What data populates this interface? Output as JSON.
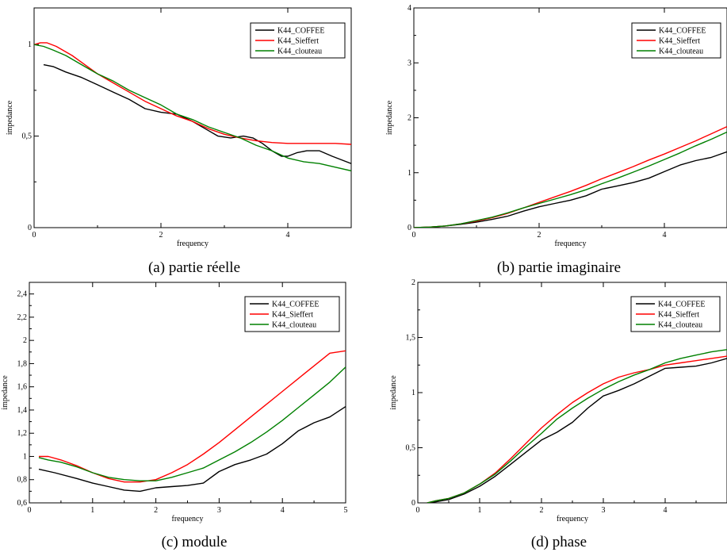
{
  "chart_data": [
    {
      "type": "line",
      "caption": "(a) partie réelle",
      "xlabel": "frequency",
      "ylabel": "impedance",
      "xlim": [
        0,
        5
      ],
      "ylim": [
        0,
        1.2
      ],
      "xticks": [
        0,
        2,
        4
      ],
      "xtick_labels": [
        "0",
        "2",
        "4"
      ],
      "yticks": [
        0,
        0.5,
        1
      ],
      "ytick_labels": [
        "0",
        "0,5",
        "1"
      ],
      "legend_position": "top-right",
      "grid": false,
      "series": [
        {
          "name": "K44_COFFEE",
          "color": "#000000",
          "x": [
            0.15,
            0.3,
            0.5,
            0.75,
            1.0,
            1.25,
            1.5,
            1.75,
            2.0,
            2.25,
            2.5,
            2.75,
            2.9,
            3.1,
            3.3,
            3.45,
            3.6,
            3.75,
            3.9,
            4.0,
            4.15,
            4.3,
            4.5,
            4.7,
            4.85,
            5.0
          ],
          "y": [
            0.89,
            0.88,
            0.85,
            0.82,
            0.78,
            0.74,
            0.7,
            0.65,
            0.63,
            0.62,
            0.58,
            0.53,
            0.5,
            0.49,
            0.5,
            0.49,
            0.46,
            0.42,
            0.39,
            0.39,
            0.41,
            0.42,
            0.42,
            0.39,
            0.37,
            0.35
          ]
        },
        {
          "name": "K44_Sieffert",
          "color": "#ff0000",
          "x": [
            0.0,
            0.1,
            0.2,
            0.35,
            0.6,
            0.8,
            1.0,
            1.25,
            1.5,
            1.75,
            2.0,
            2.25,
            2.5,
            2.75,
            3.0,
            3.25,
            3.5,
            3.75,
            4.0,
            4.25,
            4.5,
            4.75,
            5.0
          ],
          "y": [
            1.0,
            1.01,
            1.01,
            0.99,
            0.94,
            0.89,
            0.84,
            0.79,
            0.74,
            0.69,
            0.65,
            0.61,
            0.58,
            0.54,
            0.51,
            0.49,
            0.475,
            0.465,
            0.46,
            0.46,
            0.46,
            0.46,
            0.455
          ]
        },
        {
          "name": "K44_clouteau",
          "color": "#008000",
          "x": [
            0.0,
            0.15,
            0.3,
            0.5,
            0.75,
            1.0,
            1.25,
            1.5,
            1.75,
            2.0,
            2.25,
            2.5,
            2.75,
            3.0,
            3.25,
            3.5,
            3.75,
            4.0,
            4.25,
            4.5,
            4.75,
            5.0
          ],
          "y": [
            1.0,
            0.99,
            0.97,
            0.94,
            0.89,
            0.84,
            0.8,
            0.75,
            0.71,
            0.67,
            0.62,
            0.59,
            0.55,
            0.52,
            0.49,
            0.45,
            0.42,
            0.38,
            0.36,
            0.35,
            0.33,
            0.31
          ]
        }
      ]
    },
    {
      "type": "line",
      "caption": "(b) partie imaginaire",
      "xlabel": "frequency",
      "ylabel": "impedance",
      "xlim": [
        0,
        5
      ],
      "ylim": [
        0,
        4
      ],
      "xticks": [
        0,
        2,
        4
      ],
      "xtick_labels": [
        "0",
        "2",
        "4"
      ],
      "yticks": [
        0,
        1,
        2,
        3,
        4
      ],
      "ytick_labels": [
        "0",
        "1",
        "2",
        "3",
        "4"
      ],
      "legend_position": "top-right",
      "grid": false,
      "series": [
        {
          "name": "K44_COFFEE",
          "color": "#000000",
          "x": [
            0.0,
            0.25,
            0.5,
            0.75,
            1.0,
            1.25,
            1.5,
            1.75,
            2.0,
            2.25,
            2.5,
            2.75,
            3.0,
            3.25,
            3.5,
            3.75,
            4.0,
            4.25,
            4.5,
            4.75,
            5.0
          ],
          "y": [
            0.0,
            0.01,
            0.03,
            0.06,
            0.1,
            0.15,
            0.21,
            0.3,
            0.38,
            0.44,
            0.5,
            0.58,
            0.7,
            0.76,
            0.82,
            0.9,
            1.02,
            1.14,
            1.22,
            1.28,
            1.38
          ]
        },
        {
          "name": "K44_Sieffert",
          "color": "#ff0000",
          "x": [
            0.0,
            0.25,
            0.5,
            0.75,
            1.0,
            1.25,
            1.5,
            1.75,
            2.0,
            2.25,
            2.5,
            2.75,
            3.0,
            3.25,
            3.5,
            3.75,
            4.0,
            4.25,
            4.5,
            4.75,
            5.0
          ],
          "y": [
            0.0,
            0.01,
            0.03,
            0.07,
            0.12,
            0.18,
            0.26,
            0.36,
            0.46,
            0.56,
            0.66,
            0.77,
            0.89,
            1.0,
            1.11,
            1.23,
            1.34,
            1.46,
            1.58,
            1.71,
            1.84
          ]
        },
        {
          "name": "K44_clouteau",
          "color": "#008000",
          "x": [
            0.0,
            0.25,
            0.5,
            0.75,
            1.0,
            1.25,
            1.5,
            1.75,
            2.0,
            2.25,
            2.5,
            2.75,
            3.0,
            3.25,
            3.5,
            3.75,
            4.0,
            4.25,
            4.5,
            4.75,
            5.0
          ],
          "y": [
            0.0,
            0.01,
            0.03,
            0.07,
            0.13,
            0.19,
            0.27,
            0.36,
            0.44,
            0.52,
            0.6,
            0.69,
            0.8,
            0.9,
            1.01,
            1.12,
            1.24,
            1.36,
            1.49,
            1.61,
            1.74
          ]
        }
      ]
    },
    {
      "type": "line",
      "caption": "(c) module",
      "xlabel": "frequency",
      "ylabel": "impedance",
      "xlim": [
        0,
        5
      ],
      "ylim": [
        0.6,
        2.5
      ],
      "xticks": [
        0,
        1,
        2,
        3,
        4,
        5
      ],
      "xtick_labels": [
        "0",
        "1",
        "2",
        "3",
        "4",
        "5"
      ],
      "yticks": [
        0.6,
        0.8,
        1.0,
        1.2,
        1.4,
        1.6,
        1.8,
        2.0,
        2.2,
        2.4
      ],
      "ytick_labels": [
        "0,6",
        "0,8",
        "1",
        "1,2",
        "1,4",
        "1,6",
        "1,8",
        "2",
        "2,2",
        "2,4"
      ],
      "legend_position": "top-right",
      "grid": false,
      "series": [
        {
          "name": "K44_COFFEE",
          "color": "#000000",
          "x": [
            0.15,
            0.4,
            0.75,
            1.0,
            1.25,
            1.5,
            1.75,
            2.0,
            2.25,
            2.5,
            2.75,
            3.0,
            3.25,
            3.5,
            3.75,
            4.0,
            4.25,
            4.5,
            4.75,
            5.0
          ],
          "y": [
            0.89,
            0.86,
            0.81,
            0.77,
            0.74,
            0.71,
            0.7,
            0.73,
            0.74,
            0.75,
            0.77,
            0.87,
            0.93,
            0.97,
            1.02,
            1.11,
            1.22,
            1.29,
            1.34,
            1.43
          ]
        },
        {
          "name": "K44_Sieffert",
          "color": "#ff0000",
          "x": [
            0.15,
            0.3,
            0.5,
            0.75,
            1.0,
            1.25,
            1.5,
            1.75,
            2.0,
            2.25,
            2.5,
            2.75,
            3.0,
            3.25,
            3.5,
            3.75,
            4.0,
            4.25,
            4.5,
            4.75,
            5.0
          ],
          "y": [
            1.0,
            1.0,
            0.97,
            0.92,
            0.86,
            0.81,
            0.78,
            0.78,
            0.8,
            0.86,
            0.93,
            1.02,
            1.12,
            1.23,
            1.34,
            1.45,
            1.56,
            1.67,
            1.78,
            1.89,
            1.91
          ]
        },
        {
          "name": "K44_clouteau",
          "color": "#008000",
          "x": [
            0.15,
            0.3,
            0.5,
            0.75,
            1.0,
            1.25,
            1.5,
            1.75,
            2.0,
            2.25,
            2.5,
            2.75,
            3.0,
            3.25,
            3.5,
            3.75,
            4.0,
            4.25,
            4.5,
            4.75,
            5.0
          ],
          "y": [
            0.99,
            0.97,
            0.95,
            0.91,
            0.86,
            0.82,
            0.8,
            0.79,
            0.79,
            0.82,
            0.86,
            0.9,
            0.97,
            1.04,
            1.12,
            1.21,
            1.31,
            1.42,
            1.53,
            1.64,
            1.77
          ]
        }
      ]
    },
    {
      "type": "line",
      "caption": "(d) phase",
      "xlabel": "frequency",
      "ylabel": "impedance",
      "xlim": [
        0,
        5
      ],
      "ylim": [
        0,
        2
      ],
      "xticks": [
        0,
        1,
        2,
        3,
        4
      ],
      "xtick_labels": [
        "0",
        "1",
        "2",
        "3",
        "4"
      ],
      "yticks": [
        0,
        0.5,
        1,
        1.5,
        2
      ],
      "ytick_labels": [
        "0",
        "0,5",
        "1",
        "1,5",
        "2"
      ],
      "legend_position": "top-right",
      "grid": false,
      "series": [
        {
          "name": "K44_COFFEE",
          "color": "#000000",
          "x": [
            0.15,
            0.3,
            0.5,
            0.75,
            1.0,
            1.25,
            1.5,
            1.75,
            2.0,
            2.25,
            2.5,
            2.75,
            3.0,
            3.25,
            3.5,
            3.75,
            4.0,
            4.25,
            4.5,
            4.75,
            5.0
          ],
          "y": [
            0.0,
            0.01,
            0.03,
            0.08,
            0.15,
            0.24,
            0.35,
            0.46,
            0.57,
            0.64,
            0.73,
            0.86,
            0.97,
            1.02,
            1.08,
            1.15,
            1.22,
            1.23,
            1.24,
            1.27,
            1.31
          ]
        },
        {
          "name": "K44_Sieffert",
          "color": "#ff0000",
          "x": [
            0.15,
            0.3,
            0.5,
            0.75,
            1.0,
            1.25,
            1.5,
            1.75,
            2.0,
            2.25,
            2.5,
            2.75,
            3.0,
            3.25,
            3.5,
            3.75,
            4.0,
            4.25,
            4.5,
            4.75,
            5.0
          ],
          "y": [
            0.0,
            0.02,
            0.04,
            0.09,
            0.17,
            0.27,
            0.4,
            0.54,
            0.68,
            0.8,
            0.91,
            1.0,
            1.08,
            1.14,
            1.18,
            1.21,
            1.25,
            1.27,
            1.29,
            1.31,
            1.33
          ]
        },
        {
          "name": "K44_clouteau",
          "color": "#008000",
          "x": [
            0.15,
            0.3,
            0.5,
            0.75,
            1.0,
            1.25,
            1.5,
            1.75,
            2.0,
            2.25,
            2.5,
            2.75,
            3.0,
            3.25,
            3.5,
            3.75,
            4.0,
            4.25,
            4.5,
            4.75,
            5.0
          ],
          "y": [
            0.0,
            0.02,
            0.04,
            0.09,
            0.17,
            0.26,
            0.38,
            0.51,
            0.63,
            0.76,
            0.86,
            0.95,
            1.03,
            1.1,
            1.16,
            1.21,
            1.27,
            1.31,
            1.34,
            1.37,
            1.39
          ]
        }
      ]
    }
  ]
}
